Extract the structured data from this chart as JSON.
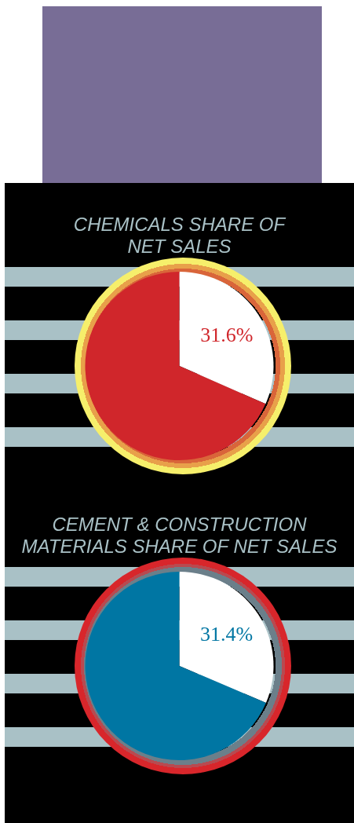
{
  "chart_data": [
    {
      "type": "pie",
      "title": "CHEMICALS SHARE OF NET SALES",
      "categories": [
        null,
        null
      ],
      "values": [
        31.6,
        68.4
      ],
      "colors": [
        "#ffffff",
        "#d0262b"
      ],
      "value_labels": [
        "31.6%",
        null
      ]
    },
    {
      "type": "pie",
      "title": "CEMENT & CONSTRUCTION MATERIALS SHARE OF NET SALES",
      "categories": [
        null,
        null
      ],
      "values": [
        31.4,
        68.6
      ],
      "colors": [
        "#ffffff",
        "#0076a3"
      ],
      "value_labels": [
        "31.4%",
        null
      ]
    }
  ]
}
